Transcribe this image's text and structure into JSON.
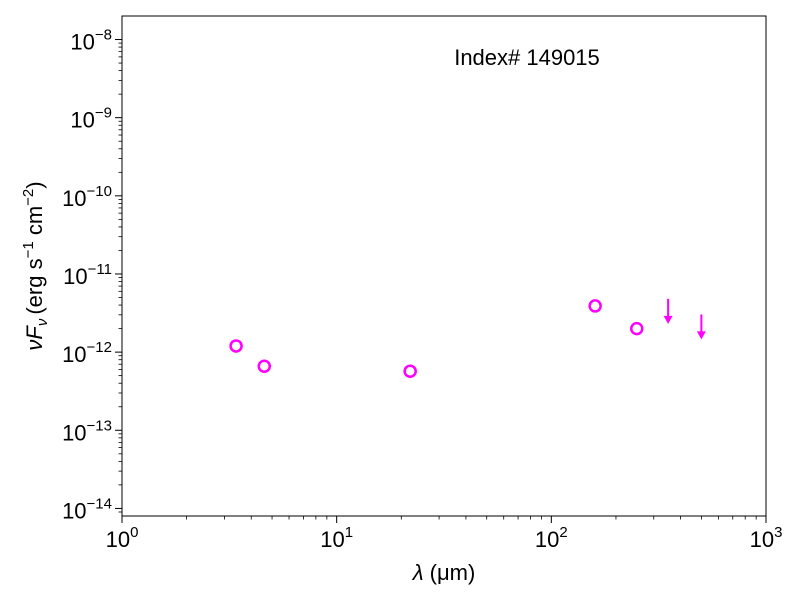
{
  "chart_data": {
    "type": "scatter",
    "annotation": "Index# 149015",
    "xlabel": {
      "symbol": "λ",
      "unit": "(μm)"
    },
    "ylabel": {
      "symbol": "νF",
      "subscript": "ν",
      "unit_open": "(erg s",
      "unit_mid": " cm",
      "unit_close": ")",
      "sup1": "−1",
      "sup2": "−2"
    },
    "x_scale": "log",
    "y_scale": "log",
    "xlim": [
      1,
      1000
    ],
    "ylim": [
      8e-15,
      2e-08
    ],
    "x_ticks": [
      {
        "base": "10",
        "exp": "0",
        "value": 1
      },
      {
        "base": "10",
        "exp": "1",
        "value": 10
      },
      {
        "base": "10",
        "exp": "2",
        "value": 100
      },
      {
        "base": "10",
        "exp": "3",
        "value": 1000
      }
    ],
    "y_ticks": [
      {
        "base": "10",
        "exp": "−14",
        "value": 1e-14
      },
      {
        "base": "10",
        "exp": "−13",
        "value": 1e-13
      },
      {
        "base": "10",
        "exp": "−12",
        "value": 1e-12
      },
      {
        "base": "10",
        "exp": "−11",
        "value": 1e-11
      },
      {
        "base": "10",
        "exp": "−10",
        "value": 1e-10
      },
      {
        "base": "10",
        "exp": "−9",
        "value": 1e-09
      },
      {
        "base": "10",
        "exp": "−8",
        "value": 1e-08
      }
    ],
    "grid": false,
    "marker_color": "#ff00ff",
    "points": [
      {
        "x": 3.4,
        "y": 1.2e-12
      },
      {
        "x": 4.6,
        "y": 6.6e-13
      },
      {
        "x": 22,
        "y": 5.7e-13
      },
      {
        "x": 160,
        "y": 3.9e-12
      },
      {
        "x": 250,
        "y": 2e-12
      }
    ],
    "upper_limits": [
      {
        "x": 350,
        "y": 3.8e-12
      },
      {
        "x": 500,
        "y": 2.4e-12
      }
    ]
  }
}
